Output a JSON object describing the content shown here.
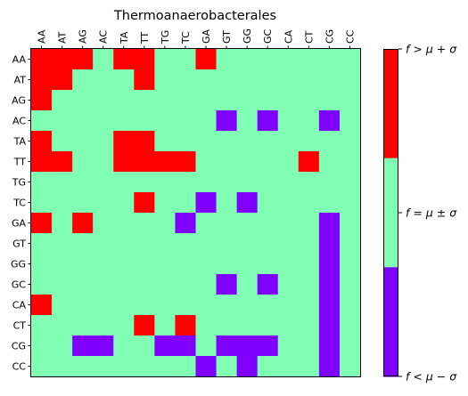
{
  "chart_data": {
    "type": "heatmap",
    "title": "Thermoanaerobacterales",
    "x_categories": [
      "AA",
      "AT",
      "AG",
      "AC",
      "TA",
      "TT",
      "TG",
      "TC",
      "GA",
      "GT",
      "GG",
      "GC",
      "CA",
      "CT",
      "CG",
      "CC"
    ],
    "y_categories": [
      "AA",
      "AT",
      "AG",
      "AC",
      "TA",
      "TT",
      "TG",
      "TC",
      "GA",
      "GT",
      "GG",
      "GC",
      "CA",
      "CT",
      "CG",
      "CC"
    ],
    "value_encoding": {
      "-1": "f < μ − σ",
      "0": "f = μ ± σ",
      "1": "f > μ + σ"
    },
    "values": [
      [
        1,
        1,
        1,
        0,
        1,
        1,
        0,
        0,
        1,
        0,
        0,
        0,
        0,
        0,
        0,
        0
      ],
      [
        1,
        1,
        0,
        0,
        0,
        1,
        0,
        0,
        0,
        0,
        0,
        0,
        0,
        0,
        0,
        0
      ],
      [
        1,
        0,
        0,
        0,
        0,
        0,
        0,
        0,
        0,
        0,
        0,
        0,
        0,
        0,
        0,
        0
      ],
      [
        0,
        0,
        0,
        0,
        0,
        0,
        0,
        0,
        0,
        -1,
        0,
        -1,
        0,
        0,
        -1,
        0
      ],
      [
        1,
        0,
        0,
        0,
        1,
        1,
        0,
        0,
        0,
        0,
        0,
        0,
        0,
        0,
        0,
        0
      ],
      [
        1,
        1,
        0,
        0,
        1,
        1,
        1,
        1,
        0,
        0,
        0,
        0,
        0,
        1,
        0,
        0
      ],
      [
        0,
        0,
        0,
        0,
        0,
        0,
        0,
        0,
        0,
        0,
        0,
        0,
        0,
        0,
        0,
        0
      ],
      [
        0,
        0,
        0,
        0,
        0,
        1,
        0,
        0,
        -1,
        0,
        -1,
        0,
        0,
        0,
        0,
        0
      ],
      [
        1,
        0,
        1,
        0,
        0,
        0,
        0,
        -1,
        0,
        0,
        0,
        0,
        0,
        0,
        -1,
        0
      ],
      [
        0,
        0,
        0,
        0,
        0,
        0,
        0,
        0,
        0,
        0,
        0,
        0,
        0,
        0,
        -1,
        0
      ],
      [
        0,
        0,
        0,
        0,
        0,
        0,
        0,
        0,
        0,
        0,
        0,
        0,
        0,
        0,
        -1,
        0
      ],
      [
        0,
        0,
        0,
        0,
        0,
        0,
        0,
        0,
        0,
        -1,
        0,
        -1,
        0,
        0,
        -1,
        0
      ],
      [
        1,
        0,
        0,
        0,
        0,
        0,
        0,
        0,
        0,
        0,
        0,
        0,
        0,
        0,
        -1,
        0
      ],
      [
        0,
        0,
        0,
        0,
        0,
        1,
        0,
        1,
        0,
        0,
        0,
        0,
        0,
        0,
        -1,
        0
      ],
      [
        0,
        0,
        -1,
        -1,
        0,
        0,
        -1,
        -1,
        0,
        -1,
        -1,
        -1,
        0,
        0,
        -1,
        0
      ],
      [
        0,
        0,
        0,
        0,
        0,
        0,
        0,
        0,
        -1,
        0,
        -1,
        0,
        0,
        0,
        -1,
        0
      ]
    ],
    "colors": {
      "-1": "#8000ff",
      "0": "#80ffb4",
      "1": "#ff0000"
    },
    "colorbar": {
      "tick_labels": [
        "f > μ + σ",
        "f = μ ± σ",
        "f < μ − σ"
      ]
    },
    "legend": "right"
  }
}
